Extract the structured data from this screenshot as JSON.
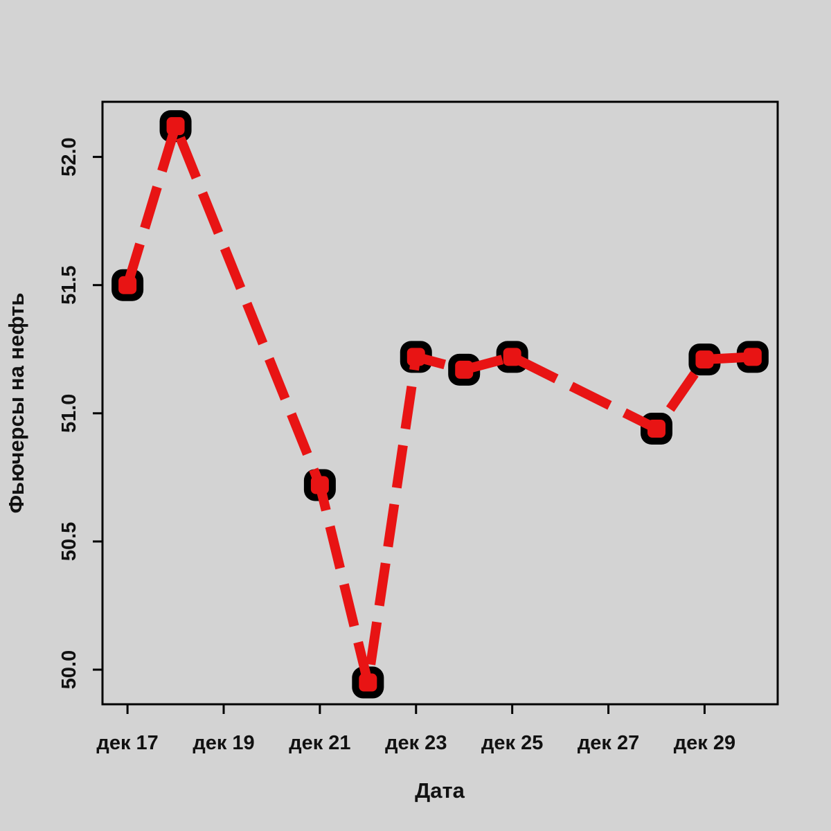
{
  "chart_data": {
    "type": "line",
    "title": "",
    "xlabel": "Дата",
    "ylabel": "Фьючерсы на нефть",
    "legend": "none",
    "grid": "off",
    "line_style": "dashed",
    "marker_style": "filled-round-square-black-ring-red-center",
    "xlim": [
      16.48,
      30.52
    ],
    "ylim": [
      49.865,
      52.215
    ],
    "x": [
      17,
      18,
      21,
      22,
      23,
      24,
      25,
      28,
      29,
      30
    ],
    "series": [
      {
        "name": "Фьючерсы на нефть",
        "values": [
          51.5,
          52.12,
          50.72,
          49.95,
          51.22,
          51.17,
          51.22,
          50.94,
          51.21,
          51.22
        ]
      }
    ],
    "points": [
      {
        "label": "дек 17",
        "day": 17,
        "value": 51.5
      },
      {
        "label": "дек 18",
        "day": 18,
        "value": 52.12
      },
      {
        "label": "дек 21",
        "day": 21,
        "value": 50.72
      },
      {
        "label": "дек 22",
        "day": 22,
        "value": 49.95
      },
      {
        "label": "дек 23",
        "day": 23,
        "value": 51.22
      },
      {
        "label": "дек 24",
        "day": 24,
        "value": 51.17
      },
      {
        "label": "дек 25",
        "day": 25,
        "value": 51.22
      },
      {
        "label": "дек 28",
        "day": 28,
        "value": 50.94
      },
      {
        "label": "дек 29",
        "day": 29,
        "value": 51.21
      },
      {
        "label": "дек 30",
        "day": 30,
        "value": 51.22
      }
    ],
    "x_ticks": [
      {
        "day": 17,
        "label": "дек 17"
      },
      {
        "day": 19,
        "label": "дек 19"
      },
      {
        "day": 21,
        "label": "дек 21"
      },
      {
        "day": 23,
        "label": "дек 23"
      },
      {
        "day": 25,
        "label": "дек 25"
      },
      {
        "day": 27,
        "label": "дек 27"
      },
      {
        "day": 29,
        "label": "дек 29"
      }
    ],
    "y_ticks": [
      {
        "value": 50.0,
        "label": "50.0"
      },
      {
        "value": 50.5,
        "label": "50.5"
      },
      {
        "value": 51.0,
        "label": "51.0"
      },
      {
        "value": 51.5,
        "label": "51.5"
      },
      {
        "value": 52.0,
        "label": "52.0"
      }
    ],
    "colors": {
      "background": "#d3d3d3",
      "line": "#e81414",
      "point_ring": "#000000",
      "point_center": "#e81414",
      "axis": "#000000",
      "text": "#111111"
    }
  }
}
